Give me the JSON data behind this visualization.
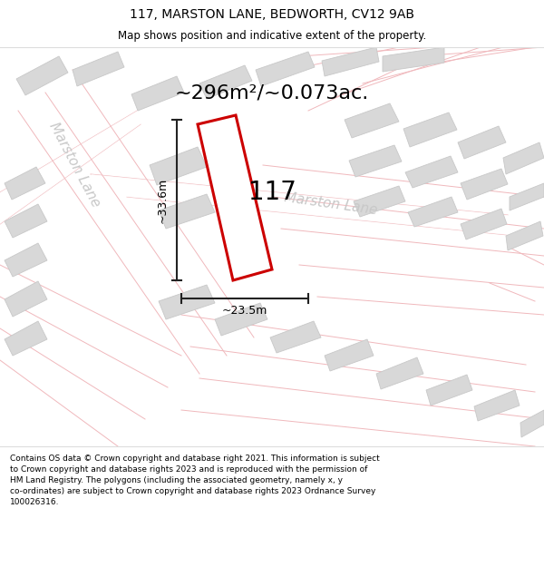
{
  "title": "117, MARSTON LANE, BEDWORTH, CV12 9AB",
  "subtitle": "Map shows position and indicative extent of the property.",
  "area_text": "~296m²/~0.073ac.",
  "number_label": "117",
  "dim_width": "~23.5m",
  "dim_height": "~33.6m",
  "street_label1": "Marston Lane",
  "street_label2": "Marston Lane",
  "footer": "Contains OS data © Crown copyright and database right 2021. This information is subject\nto Crown copyright and database rights 2023 and is reproduced with the permission of\nHM Land Registry. The polygons (including the associated geometry, namely x, y\nco-ordinates) are subject to Crown copyright and database rights 2023 Ordnance Survey\n100026316.",
  "road_line_color": "#f0b8bc",
  "building_color": "#d8d8d8",
  "building_edge_color": "#c8c8c8",
  "highlight_color": "#cc0000",
  "dim_color": "#222222",
  "street_text_color": "#c8c8c8",
  "title_fontsize": 10,
  "subtitle_fontsize": 8.5,
  "area_fontsize": 16,
  "num_fontsize": 20,
  "dim_fontsize": 9,
  "street_fontsize": 11,
  "footer_fontsize": 6.5
}
